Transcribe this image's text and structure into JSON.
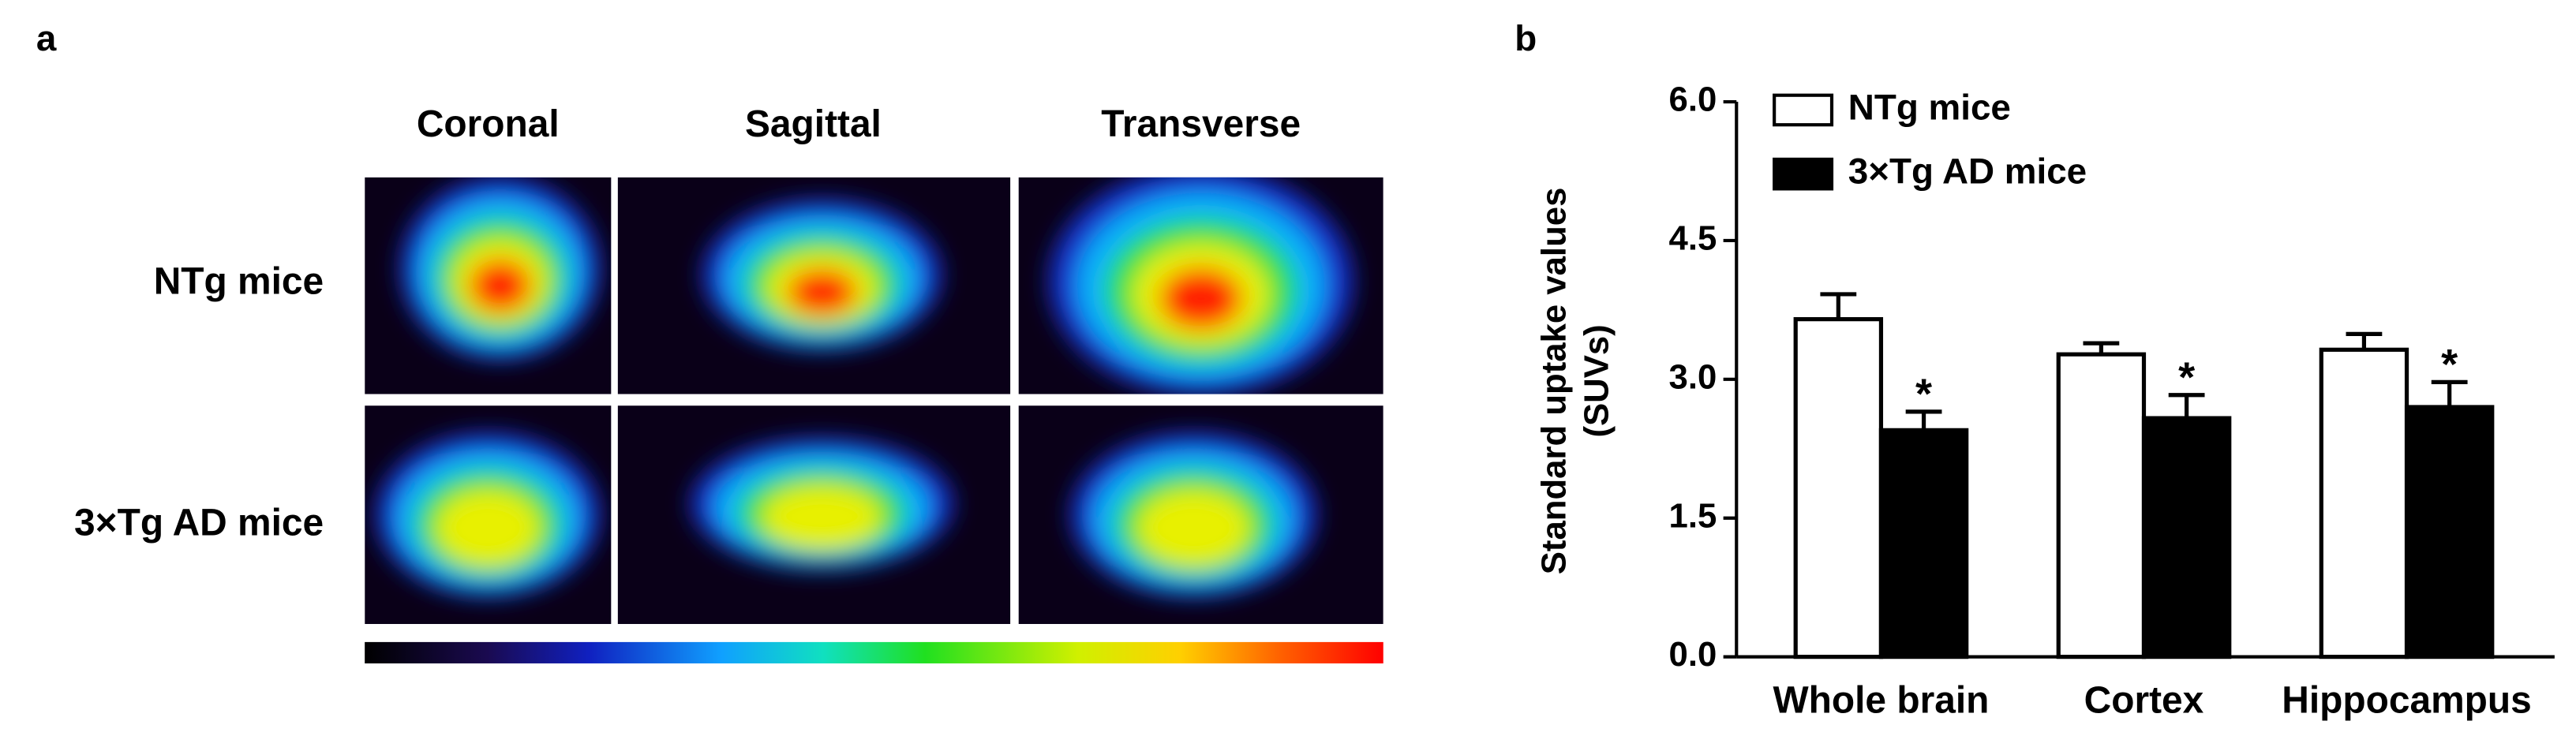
{
  "panel_a": {
    "label": "a",
    "views": [
      "Coronal",
      "Sagittal",
      "Transverse"
    ],
    "rows": [
      "NTg mice",
      "3×Tg AD mice"
    ]
  },
  "chart_data": {
    "type": "bar",
    "label": "b",
    "ylabel": "Standard uptake values\n(SUVs)",
    "categories": [
      "Whole brain",
      "Cortex",
      "Hippocampus"
    ],
    "series": [
      {
        "name": "NTg mice",
        "color": "#ffffff",
        "values": [
          3.65,
          3.27,
          3.32
        ],
        "errors": [
          0.27,
          0.12,
          0.17
        ]
      },
      {
        "name": "3×Tg AD mice",
        "color": "#000000",
        "values": [
          2.45,
          2.58,
          2.7
        ],
        "errors": [
          0.2,
          0.25,
          0.27
        ],
        "significance": [
          "*",
          "*",
          "*"
        ]
      }
    ],
    "ylim": [
      0,
      6
    ],
    "yticks": [
      {
        "value": 0,
        "label": "0.0"
      },
      {
        "value": 1.5,
        "label": "1.5"
      },
      {
        "value": 3,
        "label": "3.0"
      },
      {
        "value": 4.5,
        "label": "4.5"
      },
      {
        "value": 6,
        "label": "6.0"
      }
    ],
    "legend": "top-left"
  }
}
